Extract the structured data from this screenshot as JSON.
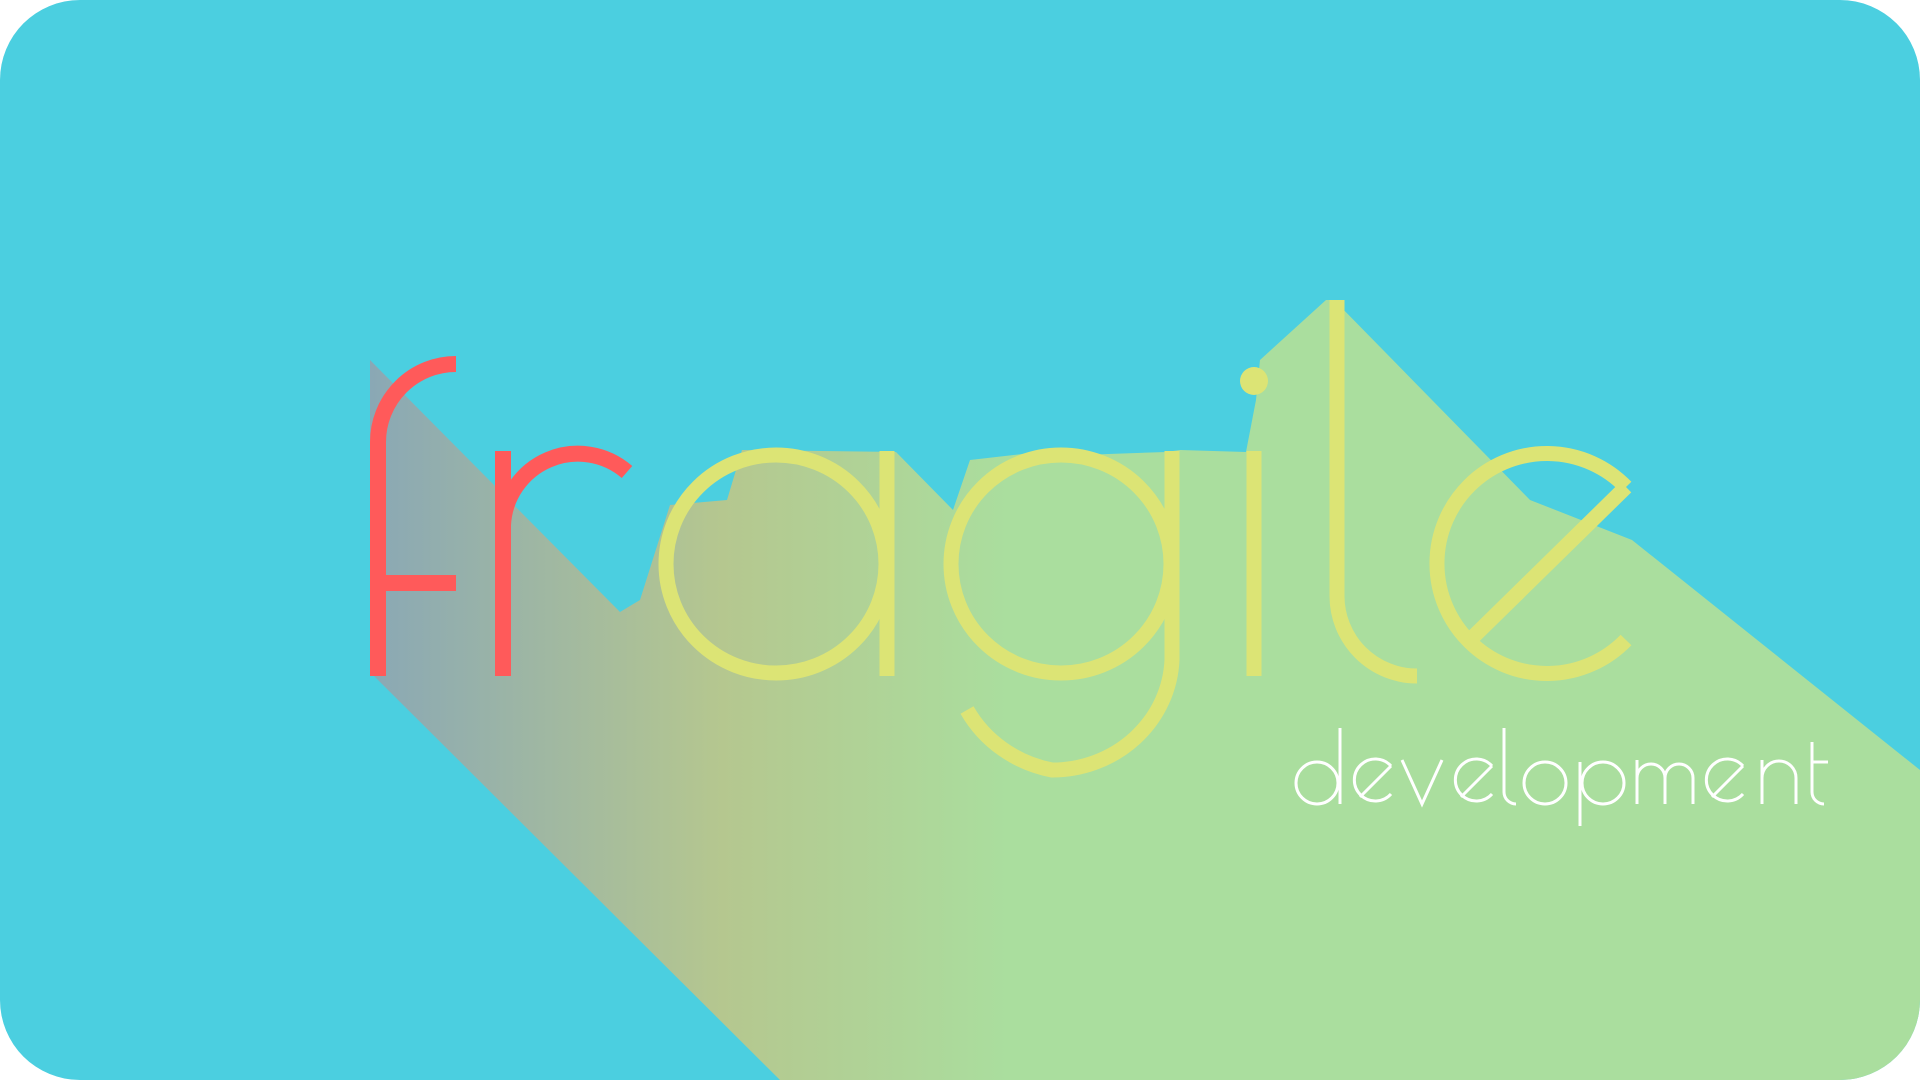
{
  "logo": {
    "word": "fragile",
    "tagline": "development"
  },
  "colors": {
    "background": "#4BCFE0",
    "shadow_start": "#8AA8B5",
    "shadow_mid": "#B5C78F",
    "shadow_end": "#AADE9E",
    "letter_f": "#FF5A5A",
    "letter_r": "#FF5A5A",
    "letters_agile": "#DCE475",
    "tagline": "#FFFFFF"
  }
}
